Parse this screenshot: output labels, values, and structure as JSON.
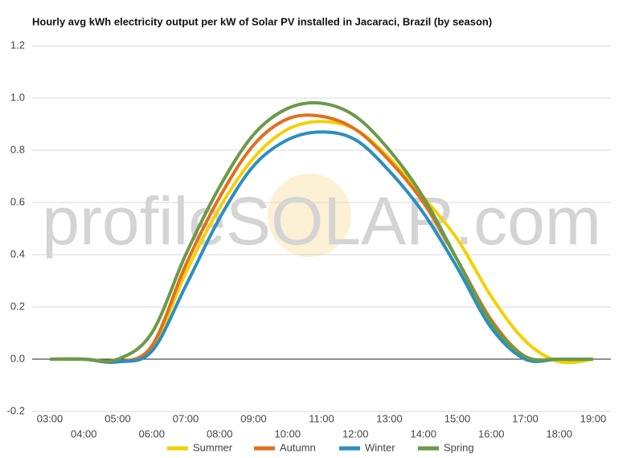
{
  "chart_data": {
    "type": "line",
    "title": "Hourly avg kWh electricity output per kW of Solar PV installed in Jacaraci, Brazil (by season)",
    "watermark": "profileSOLAR.com",
    "categories": [
      "03:00",
      "04:00",
      "05:00",
      "06:00",
      "07:00",
      "08:00",
      "09:00",
      "10:00",
      "11:00",
      "12:00",
      "13:00",
      "14:00",
      "15:00",
      "16:00",
      "17:00",
      "18:00",
      "19:00"
    ],
    "series": [
      {
        "name": "Summer",
        "color": "#f5d000",
        "values": [
          0,
          0,
          -0.01,
          0.04,
          0.33,
          0.58,
          0.77,
          0.88,
          0.91,
          0.88,
          0.77,
          0.62,
          0.46,
          0.24,
          0.07,
          -0.01,
          0
        ]
      },
      {
        "name": "Autumn",
        "color": "#e07020",
        "values": [
          0,
          0,
          -0.01,
          0.05,
          0.36,
          0.62,
          0.82,
          0.92,
          0.93,
          0.88,
          0.76,
          0.6,
          0.38,
          0.15,
          0.01,
          0,
          0
        ]
      },
      {
        "name": "Winter",
        "color": "#2a8fc0",
        "values": [
          0,
          0,
          -0.01,
          0.03,
          0.28,
          0.54,
          0.74,
          0.84,
          0.87,
          0.84,
          0.72,
          0.56,
          0.35,
          0.12,
          0,
          0,
          0
        ]
      },
      {
        "name": "Spring",
        "color": "#6a9a48",
        "values": [
          0,
          0,
          0,
          0.1,
          0.4,
          0.66,
          0.86,
          0.96,
          0.98,
          0.93,
          0.8,
          0.62,
          0.38,
          0.14,
          0.01,
          0,
          0
        ]
      }
    ],
    "ylim": [
      -0.2,
      1.2
    ],
    "yticks": [
      -0.2,
      {
        "value": 0,
        "label": "0.0"
      },
      0.2,
      0.4,
      0.6,
      0.8,
      {
        "value": 1,
        "label": "1.0"
      },
      1.2
    ],
    "grid": true
  }
}
